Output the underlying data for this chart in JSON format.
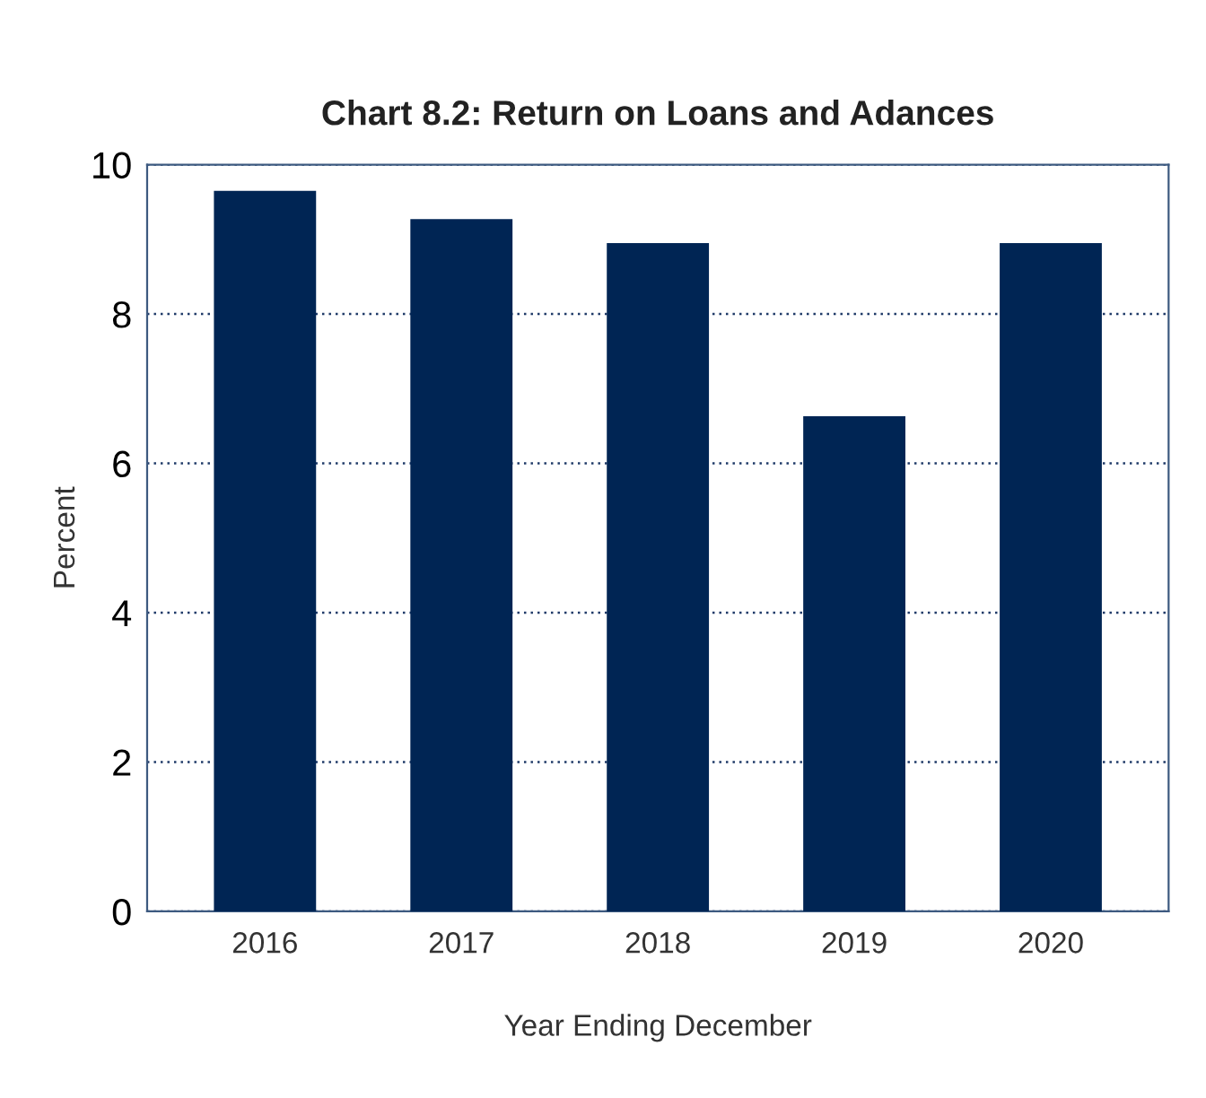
{
  "chart_data": {
    "type": "bar",
    "title": "Chart 8.2: Return on Loans and Adances",
    "xlabel": "Year Ending December",
    "ylabel": "Percent",
    "categories": [
      "2016",
      "2017",
      "2018",
      "2019",
      "2020"
    ],
    "values": [
      9.65,
      9.27,
      8.95,
      6.63,
      8.95
    ],
    "color": "#002554",
    "ylim": [
      0,
      10
    ],
    "yticks": [
      0,
      2,
      4,
      6,
      8,
      10
    ],
    "grid": "y"
  }
}
